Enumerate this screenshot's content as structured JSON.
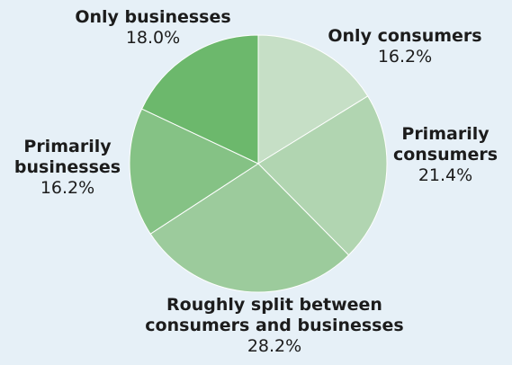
{
  "chart_data": {
    "type": "pie",
    "start_angle_deg": 0,
    "direction": "clockwise",
    "slices": [
      {
        "label": "Only consumers",
        "value": 16.2,
        "value_label": "16.2%",
        "color": "#c6dfc6"
      },
      {
        "label": "Primarily consumers",
        "value": 21.4,
        "value_label": "21.4%",
        "color": "#b1d5b1"
      },
      {
        "label": "Roughly split between consumers and businesses",
        "value": 28.2,
        "value_label": "28.2%",
        "color": "#9ccb9c"
      },
      {
        "label": "Primarily businesses",
        "value": 16.2,
        "value_label": "16.2%",
        "color": "#85c285"
      },
      {
        "label": "Only businesses",
        "value": 18.0,
        "value_label": "18.0%",
        "color": "#6cb86c"
      }
    ]
  }
}
